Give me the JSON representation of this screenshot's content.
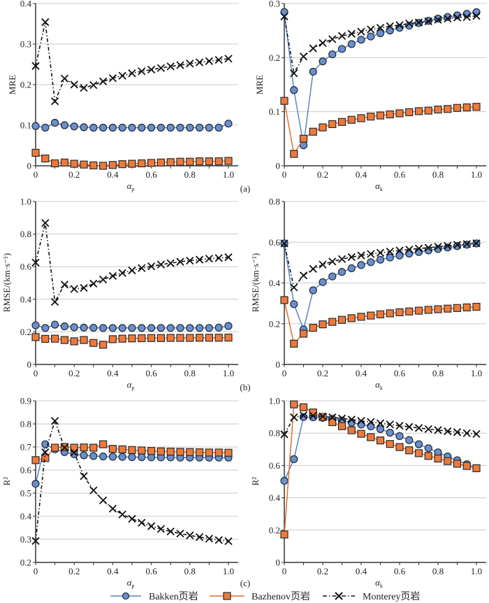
{
  "legend": [
    {
      "name": "Bakken页岩",
      "marker": "circle",
      "line": "solid",
      "color": "#5b84c4",
      "fill": "#6a8fcc"
    },
    {
      "name": "Bazhenov页岩",
      "marker": "square",
      "line": "solid",
      "color": "#e36c2c",
      "fill": "#ec7a3c"
    },
    {
      "name": "Monterey页岩",
      "marker": "x",
      "line": "dashdot",
      "color": "#111111",
      "fill": "#111111"
    }
  ],
  "panel_labels": [
    "(a)",
    "(b)",
    "(c)"
  ],
  "chart_data": [
    {
      "type": "line",
      "panel": "(a) left",
      "ylabel": "MRE",
      "xlabel": "αp",
      "xlabel_main": "α",
      "xlabel_sub": "p",
      "ylim": [
        0,
        0.4
      ],
      "yticks": [
        "0",
        "0.1",
        "0.2",
        "0.3",
        "0.4"
      ],
      "xlim": [
        0,
        1.0
      ],
      "xticks": [
        "0",
        "0.2",
        "0.4",
        "0.6",
        "0.8",
        "1.0"
      ],
      "grid": true,
      "x": [
        0,
        0.05,
        0.1,
        0.15,
        0.2,
        0.25,
        0.3,
        0.35,
        0.4,
        0.45,
        0.5,
        0.55,
        0.6,
        0.65,
        0.7,
        0.75,
        0.8,
        0.85,
        0.9,
        0.95,
        1.0
      ],
      "series": [
        {
          "name": "Bakken页岩",
          "values": [
            0.098,
            0.094,
            0.106,
            0.1,
            0.097,
            0.095,
            0.094,
            0.094,
            0.094,
            0.094,
            0.094,
            0.094,
            0.094,
            0.094,
            0.094,
            0.094,
            0.094,
            0.094,
            0.094,
            0.094,
            0.104
          ]
        },
        {
          "name": "Bazhenov页岩",
          "values": [
            0.032,
            0.018,
            0.006,
            0.008,
            0.005,
            0.003,
            0.001,
            0.0,
            0.002,
            0.004,
            0.005,
            0.006,
            0.007,
            0.008,
            0.009,
            0.01,
            0.01,
            0.011,
            0.011,
            0.011,
            0.012
          ]
        },
        {
          "name": "Monterey页岩",
          "values": [
            0.246,
            0.354,
            0.159,
            0.215,
            0.2,
            0.192,
            0.199,
            0.208,
            0.216,
            0.222,
            0.228,
            0.233,
            0.237,
            0.241,
            0.245,
            0.248,
            0.252,
            0.255,
            0.258,
            0.261,
            0.264
          ]
        }
      ]
    },
    {
      "type": "line",
      "panel": "(a) right",
      "ylabel": "MRE",
      "xlabel": "αk",
      "xlabel_main": "α",
      "xlabel_sub": "k",
      "ylim": [
        0,
        0.3
      ],
      "yticks": [
        "0",
        "0.1",
        "0.2",
        "0.3"
      ],
      "xlim": [
        0,
        1.0
      ],
      "xticks": [
        "0",
        "0.2",
        "0.4",
        "0.6",
        "0.8",
        "1.0"
      ],
      "grid": true,
      "x": [
        0,
        0.05,
        0.1,
        0.15,
        0.2,
        0.25,
        0.3,
        0.35,
        0.4,
        0.45,
        0.5,
        0.55,
        0.6,
        0.65,
        0.7,
        0.75,
        0.8,
        0.85,
        0.9,
        0.95,
        1.0
      ],
      "series": [
        {
          "name": "Bakken页岩",
          "values": [
            0.284,
            0.14,
            0.038,
            0.174,
            0.193,
            0.206,
            0.216,
            0.225,
            0.233,
            0.239,
            0.245,
            0.25,
            0.255,
            0.259,
            0.264,
            0.268,
            0.272,
            0.275,
            0.278,
            0.281,
            0.284
          ]
        },
        {
          "name": "Bazhenov页岩",
          "values": [
            0.12,
            0.022,
            0.05,
            0.063,
            0.071,
            0.077,
            0.081,
            0.085,
            0.088,
            0.091,
            0.093,
            0.095,
            0.097,
            0.099,
            0.101,
            0.102,
            0.104,
            0.105,
            0.107,
            0.108,
            0.109
          ]
        },
        {
          "name": "Monterey页岩",
          "values": [
            0.276,
            0.171,
            0.202,
            0.217,
            0.227,
            0.234,
            0.24,
            0.244,
            0.248,
            0.252,
            0.255,
            0.258,
            0.26,
            0.263,
            0.265,
            0.267,
            0.27,
            0.272,
            0.274,
            0.275,
            0.277
          ]
        }
      ]
    },
    {
      "type": "line",
      "panel": "(b) left",
      "ylabel": "RMSE/(km·s⁻¹)",
      "xlabel": "αp",
      "xlabel_main": "α",
      "xlabel_sub": "p",
      "ylim": [
        0,
        1.0
      ],
      "yticks": [
        "0",
        "0.2",
        "0.4",
        "0.6",
        "0.8",
        "1.0"
      ],
      "xlim": [
        0,
        1.0
      ],
      "xticks": [
        "0",
        "0.2",
        "0.4",
        "0.6",
        "0.8",
        "1.0"
      ],
      "grid": true,
      "x": [
        0,
        0.05,
        0.1,
        0.15,
        0.2,
        0.25,
        0.3,
        0.35,
        0.4,
        0.45,
        0.5,
        0.55,
        0.6,
        0.65,
        0.7,
        0.75,
        0.8,
        0.85,
        0.9,
        0.95,
        1.0
      ],
      "series": [
        {
          "name": "Bakken页岩",
          "values": [
            0.24,
            0.224,
            0.244,
            0.234,
            0.228,
            0.226,
            0.225,
            0.224,
            0.224,
            0.224,
            0.224,
            0.224,
            0.224,
            0.224,
            0.224,
            0.224,
            0.224,
            0.224,
            0.224,
            0.226,
            0.236
          ]
        },
        {
          "name": "Bazhenov页岩",
          "values": [
            0.168,
            0.157,
            0.158,
            0.15,
            0.142,
            0.15,
            0.132,
            0.121,
            0.155,
            0.158,
            0.16,
            0.161,
            0.162,
            0.162,
            0.163,
            0.163,
            0.163,
            0.164,
            0.164,
            0.164,
            0.165
          ]
        },
        {
          "name": "Monterey页岩",
          "values": [
            0.625,
            0.868,
            0.384,
            0.49,
            0.463,
            0.47,
            0.496,
            0.521,
            0.543,
            0.561,
            0.577,
            0.591,
            0.602,
            0.613,
            0.621,
            0.63,
            0.637,
            0.643,
            0.649,
            0.653,
            0.658
          ]
        }
      ]
    },
    {
      "type": "line",
      "panel": "(b) right",
      "ylabel": "RMSE/(km·s⁻¹)",
      "xlabel": "αk",
      "xlabel_main": "α",
      "xlabel_sub": "k",
      "ylim": [
        0,
        0.8
      ],
      "yticks": [
        "0",
        "0.2",
        "0.4",
        "0.6",
        "0.8"
      ],
      "xlim": [
        0,
        1.0
      ],
      "xticks": [
        "0",
        "0.2",
        "0.4",
        "0.6",
        "0.8",
        "1.0"
      ],
      "grid": true,
      "x": [
        0,
        0.05,
        0.1,
        0.15,
        0.2,
        0.25,
        0.3,
        0.35,
        0.4,
        0.45,
        0.5,
        0.55,
        0.6,
        0.65,
        0.7,
        0.75,
        0.8,
        0.85,
        0.9,
        0.95,
        1.0
      ],
      "series": [
        {
          "name": "Bakken页岩",
          "values": [
            0.594,
            0.296,
            0.172,
            0.364,
            0.404,
            0.432,
            0.454,
            0.472,
            0.488,
            0.502,
            0.514,
            0.525,
            0.535,
            0.544,
            0.552,
            0.56,
            0.567,
            0.574,
            0.581,
            0.588,
            0.594
          ]
        },
        {
          "name": "Bazhenov页岩",
          "values": [
            0.316,
            0.102,
            0.151,
            0.18,
            0.197,
            0.209,
            0.219,
            0.227,
            0.234,
            0.24,
            0.246,
            0.251,
            0.256,
            0.26,
            0.264,
            0.268,
            0.271,
            0.274,
            0.277,
            0.28,
            0.283
          ]
        },
        {
          "name": "Monterey页岩",
          "values": [
            0.594,
            0.378,
            0.437,
            0.469,
            0.49,
            0.505,
            0.517,
            0.527,
            0.535,
            0.542,
            0.548,
            0.554,
            0.559,
            0.564,
            0.569,
            0.573,
            0.578,
            0.582,
            0.587,
            0.591,
            0.595
          ]
        }
      ]
    },
    {
      "type": "line",
      "panel": "(c) left",
      "ylabel": "R²",
      "xlabel": "αp",
      "xlabel_main": "α",
      "xlabel_sub": "p",
      "ylim": [
        0.2,
        0.9
      ],
      "yticks": [
        "0.2",
        "0.3",
        "0.4",
        "0.5",
        "0.6",
        "0.7",
        "0.8",
        "0.9"
      ],
      "xlim": [
        0,
        1.0
      ],
      "xticks": [
        "0",
        "0.2",
        "0.4",
        "0.6",
        "0.8",
        "1.0"
      ],
      "grid": true,
      "x": [
        0,
        0.05,
        0.1,
        0.15,
        0.2,
        0.25,
        0.3,
        0.35,
        0.4,
        0.45,
        0.5,
        0.55,
        0.6,
        0.65,
        0.7,
        0.75,
        0.8,
        0.85,
        0.9,
        0.95,
        1.0
      ],
      "series": [
        {
          "name": "Bakken页岩",
          "values": [
            0.541,
            0.712,
            0.69,
            0.678,
            0.669,
            0.664,
            0.661,
            0.659,
            0.658,
            0.657,
            0.656,
            0.656,
            0.655,
            0.655,
            0.655,
            0.654,
            0.654,
            0.654,
            0.654,
            0.654,
            0.654
          ]
        },
        {
          "name": "Bazhenov页岩",
          "values": [
            0.643,
            0.652,
            0.697,
            0.7,
            0.697,
            0.698,
            0.697,
            0.712,
            0.692,
            0.69,
            0.687,
            0.685,
            0.683,
            0.681,
            0.68,
            0.679,
            0.678,
            0.677,
            0.676,
            0.676,
            0.675
          ]
        },
        {
          "name": "Monterey页岩",
          "values": [
            0.293,
            0.677,
            0.813,
            0.697,
            0.676,
            0.574,
            0.512,
            0.469,
            0.433,
            0.408,
            0.389,
            0.372,
            0.357,
            0.345,
            0.334,
            0.325,
            0.317,
            0.31,
            0.303,
            0.297,
            0.292
          ]
        }
      ]
    },
    {
      "type": "line",
      "panel": "(c) right",
      "ylabel": "R²",
      "xlabel": "αk",
      "xlabel_main": "α",
      "xlabel_sub": "k",
      "ylim": [
        0,
        1.0
      ],
      "yticks": [
        "0",
        "0.2",
        "0.4",
        "0.6",
        "0.8",
        "1.0"
      ],
      "xlim": [
        0,
        1.0
      ],
      "xticks": [
        "0",
        "0.2",
        "0.4",
        "0.6",
        "0.8",
        "1.0"
      ],
      "grid": true,
      "x": [
        0,
        0.05,
        0.1,
        0.15,
        0.2,
        0.25,
        0.3,
        0.35,
        0.4,
        0.45,
        0.5,
        0.55,
        0.6,
        0.65,
        0.7,
        0.75,
        0.8,
        0.85,
        0.9,
        0.95,
        1.0
      ],
      "series": [
        {
          "name": "Bakken页岩",
          "values": [
            0.505,
            0.639,
            0.9,
            0.898,
            0.895,
            0.888,
            0.878,
            0.865,
            0.853,
            0.842,
            0.825,
            0.803,
            0.782,
            0.757,
            0.731,
            0.707,
            0.681,
            0.656,
            0.632,
            0.608,
            0.583
          ]
        },
        {
          "name": "Bazhenov页岩",
          "values": [
            0.173,
            0.978,
            0.96,
            0.928,
            0.9,
            0.868,
            0.843,
            0.818,
            0.796,
            0.775,
            0.755,
            0.733,
            0.714,
            0.694,
            0.676,
            0.659,
            0.643,
            0.627,
            0.611,
            0.597,
            0.583
          ]
        },
        {
          "name": "Monterey页岩",
          "values": [
            0.793,
            0.898,
            0.91,
            0.908,
            0.903,
            0.898,
            0.891,
            0.884,
            0.876,
            0.869,
            0.861,
            0.854,
            0.846,
            0.839,
            0.832,
            0.825,
            0.819,
            0.812,
            0.806,
            0.8,
            0.795
          ]
        }
      ]
    }
  ]
}
